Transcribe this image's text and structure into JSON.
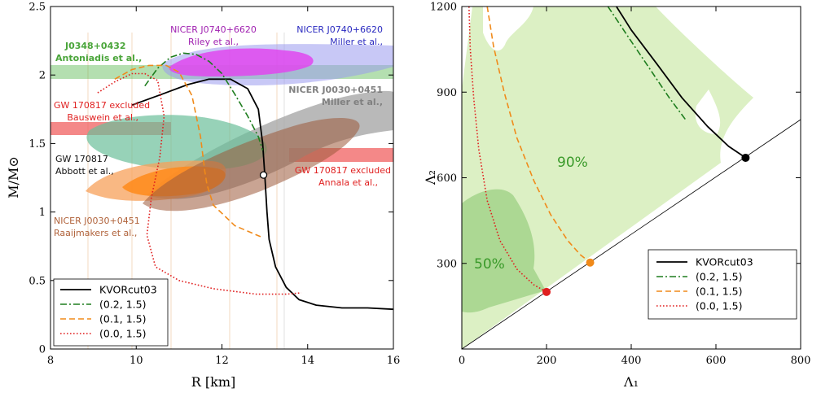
{
  "chart_data": [
    {
      "type": "line",
      "xlabel": "R [km]",
      "ylabel": "M/M⊙",
      "xlim": [
        8,
        16
      ],
      "ylim": [
        0,
        2.5
      ],
      "xticks": [
        "8",
        "10",
        "12",
        "14",
        "16"
      ],
      "yticks": [
        "0",
        "0.5",
        "1",
        "1.5",
        "2",
        "2.5"
      ],
      "series": [
        {
          "name": "KVORcut03",
          "color": "#000000",
          "style": "solid",
          "x": [
            9.9,
            10.6,
            11.2,
            11.7,
            12.2,
            12.6,
            12.85,
            12.95,
            13.0,
            13.05,
            13.1,
            13.25,
            13.5,
            13.8,
            14.2,
            14.8,
            15.4,
            16.0
          ],
          "y": [
            1.78,
            1.86,
            1.93,
            1.97,
            1.97,
            1.9,
            1.75,
            1.5,
            1.27,
            1.0,
            0.8,
            0.6,
            0.45,
            0.36,
            0.32,
            0.3,
            0.3,
            0.29
          ]
        },
        {
          "name": "(0.2, 1.5)",
          "color": "#1e7d1e",
          "style": "dashdot",
          "x": [
            10.2,
            10.5,
            10.8,
            11.1,
            11.4,
            11.7,
            12.0,
            12.3,
            12.6,
            12.85,
            12.95
          ],
          "y": [
            1.92,
            2.05,
            2.13,
            2.16,
            2.15,
            2.1,
            2.01,
            1.86,
            1.7,
            1.55,
            1.45
          ]
        },
        {
          "name": "(0.1, 1.5)",
          "color": "#f08a1a",
          "style": "dashed",
          "x": [
            9.5,
            9.9,
            10.3,
            10.7,
            11.0,
            11.3,
            11.5,
            11.6,
            11.65,
            11.8,
            12.3,
            12.9
          ],
          "y": [
            1.97,
            2.04,
            2.07,
            2.07,
            2.02,
            1.85,
            1.55,
            1.3,
            1.2,
            1.05,
            0.9,
            0.82
          ]
        },
        {
          "name": "(0.0, 1.5)",
          "color": "#e01f1f",
          "style": "dotted",
          "x": [
            9.1,
            9.5,
            9.9,
            10.2,
            10.5,
            10.65,
            10.55,
            10.35,
            10.25,
            10.45,
            11.0,
            11.8,
            12.8,
            13.5,
            13.85
          ],
          "y": [
            1.87,
            1.95,
            2.01,
            2.01,
            1.96,
            1.7,
            1.4,
            1.1,
            0.83,
            0.6,
            0.5,
            0.44,
            0.4,
            0.4,
            0.41
          ]
        }
      ],
      "markers": [
        {
          "x": 12.97,
          "y": 1.27,
          "style": "open-circle"
        }
      ],
      "constraints": [
        {
          "title": "J0348+0432",
          "subtitle": "Antoniadis et al.,",
          "color": "#58b84f"
        },
        {
          "title": "NICER J0740+6620",
          "subtitle": "Riley et al.,",
          "color": "#b020c0"
        },
        {
          "title": "NICER J0740+6620",
          "subtitle": "Miller et al.,",
          "color": "#3232c8"
        },
        {
          "title": "NICER J0030+0451",
          "subtitle": "Miller et al.,",
          "color": "#8c8c8c"
        },
        {
          "title": "GW 170817 excluded",
          "subtitle": "Bauswein et al.,",
          "color": "#e82020"
        },
        {
          "title": "GW 170817",
          "subtitle": "Abbott et al.,",
          "color": "#222222"
        },
        {
          "title": "GW 170817 excluded",
          "subtitle": "Annala et al.,",
          "color": "#e82020"
        },
        {
          "title": "NICER J0030+0451",
          "subtitle": "Raaijmakers et al.,",
          "color": "#b0623a"
        }
      ],
      "legend": "bottom-left"
    },
    {
      "type": "line",
      "xlabel": "Λ₁",
      "ylabel": "Λ₂",
      "xlim": [
        0,
        800
      ],
      "ylim": [
        0,
        1200
      ],
      "xticks": [
        "0",
        "200",
        "400",
        "600",
        "800"
      ],
      "yticks": [
        "300",
        "600",
        "900",
        "1200"
      ],
      "regions": [
        {
          "label": "90%",
          "color": "#d8eebe"
        },
        {
          "label": "50%",
          "color": "#a6d58e"
        }
      ],
      "series": [
        {
          "name": "KVORcut03",
          "color": "#000000",
          "style": "solid",
          "x": [
            365,
            400,
            460,
            520,
            580,
            630,
            670
          ],
          "y": [
            1200,
            1118,
            1000,
            880,
            780,
            710,
            670
          ]
        },
        {
          "name": "(0.2, 1.5)",
          "color": "#1e7d1e",
          "style": "dashdot",
          "x": [
            345,
            390,
            440,
            490,
            530
          ],
          "y": [
            1200,
            1100,
            990,
            880,
            800
          ]
        },
        {
          "name": "(0.1, 1.5)",
          "color": "#f08a1a",
          "style": "dashed",
          "x": [
            60,
            75,
            100,
            130,
            170,
            210,
            250,
            280,
            303
          ],
          "y": [
            1200,
            1060,
            900,
            740,
            590,
            470,
            380,
            330,
            303
          ]
        },
        {
          "name": "(0.0, 1.5)",
          "color": "#e01f1f",
          "style": "dotted",
          "x": [
            17,
            20,
            28,
            40,
            60,
            90,
            130,
            170,
            200
          ],
          "y": [
            1200,
            1050,
            880,
            700,
            520,
            380,
            280,
            225,
            200
          ]
        }
      ],
      "endpoints": [
        {
          "x": 670,
          "y": 670,
          "color": "#000000"
        },
        {
          "x": 303,
          "y": 303,
          "color": "#f08a1a"
        },
        {
          "x": 200,
          "y": 200,
          "color": "#e01f1f"
        }
      ],
      "legend": "bottom-right"
    }
  ]
}
